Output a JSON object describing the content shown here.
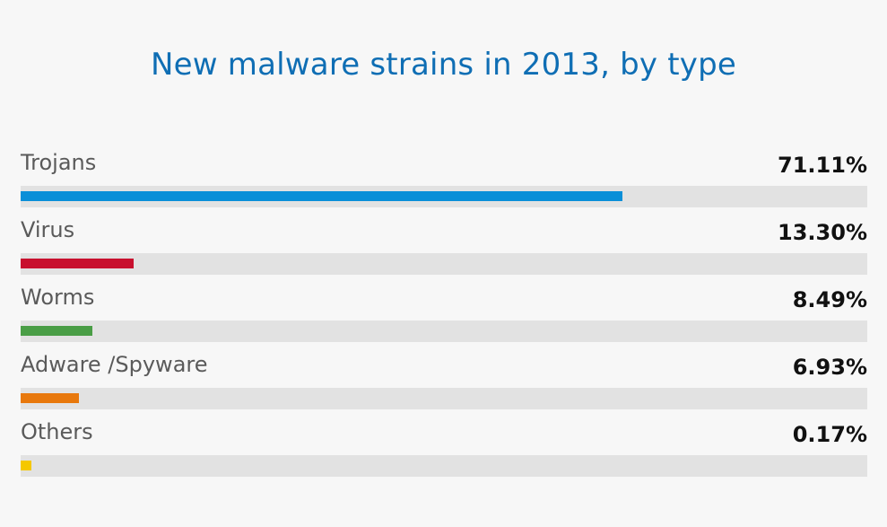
{
  "chart_data": {
    "type": "bar",
    "orientation": "horizontal",
    "title": "New malware strains in 2013, by type",
    "categories": [
      "Trojans",
      "Virus",
      "Worms",
      "Adware /Spyware",
      "Others"
    ],
    "values": [
      71.11,
      13.3,
      8.49,
      6.93,
      0.17
    ],
    "value_labels": [
      "71.11%",
      "13.30%",
      "8.49%",
      "6.93%",
      "0.17%"
    ],
    "colors": [
      "#0a8fd8",
      "#c8102e",
      "#4a9e46",
      "#e8780c",
      "#f5c800"
    ],
    "xlim": [
      0,
      100
    ],
    "track_color": "#e2e2e2",
    "title_color": "#0f6eb4"
  }
}
